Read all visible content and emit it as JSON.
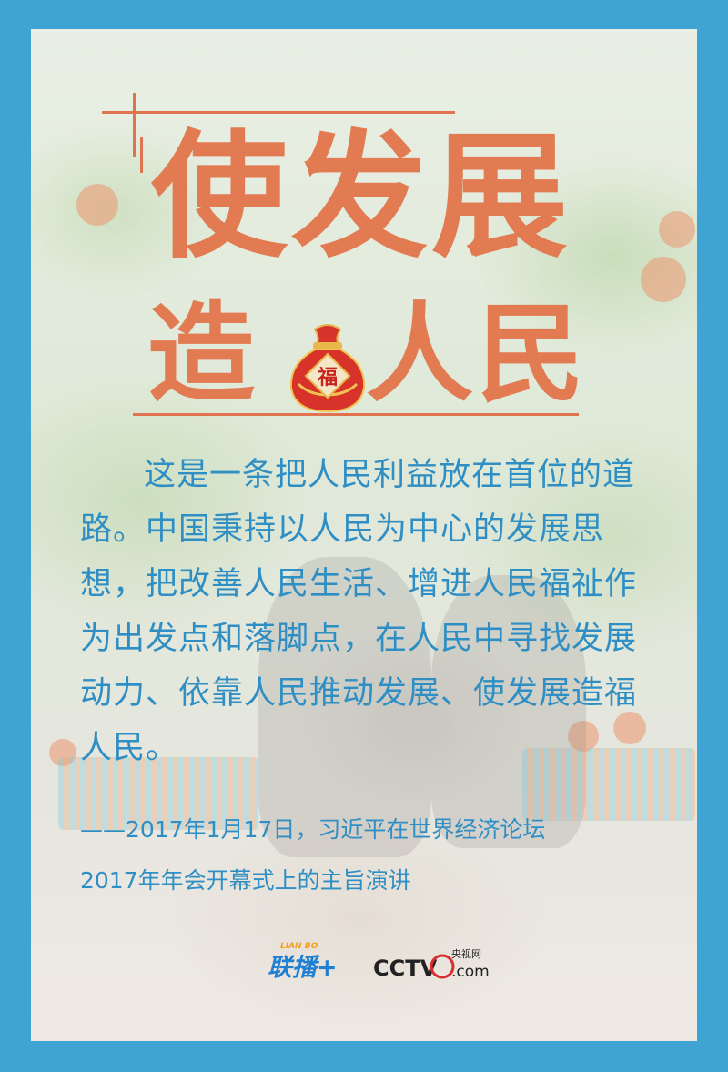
{
  "poster": {
    "title_line1": "使发展",
    "title_line2_left": "造",
    "title_line2_right": "人民",
    "bag_char": "福",
    "body": "这是一条把人民利益放在首位的道路。中国秉持以人民为中心的发展思想，把改善人民生活、增进人民福祉作为出发点和落脚点，在人民中寻找发展动力、依靠人民推动发展、使发展造福人民。",
    "source_line1": "——2017年1月17日，习近平在世界经济论坛",
    "source_line2": "2017年年会开幕式上的主旨演讲"
  },
  "logos": {
    "lianbo_small": "LIAN BO",
    "lianbo_main": "联播+",
    "cctv_main": "CCTV",
    "cctv_small": "央视网",
    "cctv_com": ".com"
  },
  "colors": {
    "frame": "#3fa3d3",
    "title": "#e27a52",
    "text": "#2f8fc4"
  }
}
